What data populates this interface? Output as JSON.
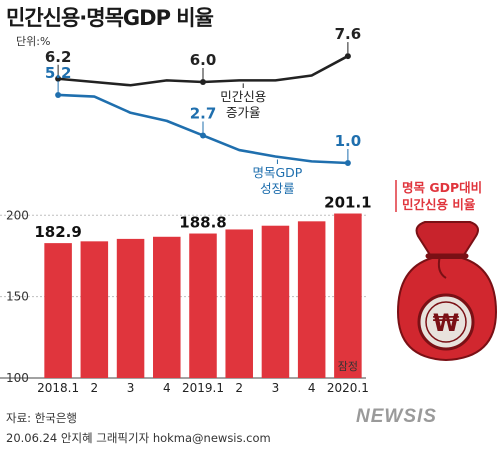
{
  "title": "민간신용·명목GDP 비율",
  "unit_label": "단위:%",
  "chart_data": [
    {
      "type": "line",
      "x": [
        "2018.1",
        "2018.2",
        "2018.3",
        "2018.4",
        "2019.1",
        "2019.2",
        "2019.3",
        "2019.4",
        "2020.1"
      ],
      "series": [
        {
          "name": "민간신용 증가율",
          "label_lines": [
            "민간신용",
            "증가율"
          ],
          "color": "#222222",
          "values": [
            6.2,
            6.0,
            5.8,
            6.1,
            6.0,
            6.1,
            6.1,
            6.4,
            7.6
          ],
          "point_labels": {
            "0": "6.2",
            "4": "6.0",
            "8": "7.6"
          }
        },
        {
          "name": "명목GDP 성장률",
          "label_lines": [
            "명목GDP",
            "성장률"
          ],
          "color": "#1f6fae",
          "values": [
            5.2,
            5.1,
            4.1,
            3.6,
            2.7,
            1.8,
            1.4,
            1.1,
            1.0
          ],
          "point_labels": {
            "0": "5.2",
            "4": "2.7",
            "8": "1.0"
          }
        }
      ]
    },
    {
      "type": "bar",
      "categories": [
        "2018.1",
        "2",
        "3",
        "4",
        "2019.1",
        "2",
        "3",
        "4",
        "2020.1"
      ],
      "values": [
        182.9,
        184.0,
        185.5,
        186.8,
        188.8,
        191.3,
        193.6,
        196.3,
        201.1
      ],
      "data_labels": {
        "0": "182.9",
        "4": "188.8",
        "8": "201.1"
      },
      "series_label_lines": [
        "명목 GDP대비",
        "민간신용 비율"
      ],
      "bar_color": "#e0353d",
      "yticks": [
        100,
        150,
        200
      ],
      "ylim": [
        100,
        210
      ],
      "annotation": "잠정"
    }
  ],
  "source": "자료: 한국은행",
  "credit": "20.06.24 안지혜 그래픽기자 hokma@newsis.com",
  "logo_text": "NEWSIS",
  "icon": "money-bag-won-icon"
}
